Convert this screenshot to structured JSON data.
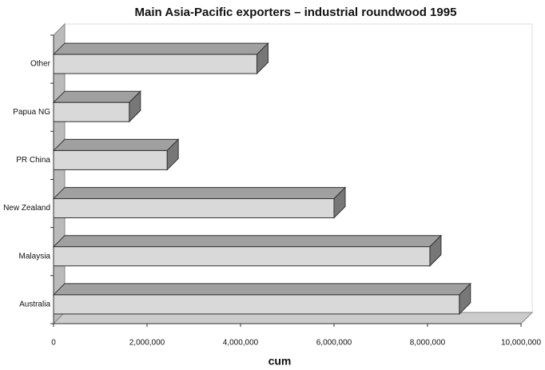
{
  "chart_data": {
    "type": "bar3d_horizontal",
    "title": "Main Asia-Pacific exporters – industrial roundwood 1995",
    "xlabel": "cum",
    "categories": [
      "Other",
      "Papua NG",
      "PR China",
      "New Zealand",
      "Malaysia",
      "Australia"
    ],
    "values": [
      4350000,
      1620000,
      2430000,
      6000000,
      8050000,
      8680000
    ],
    "color": "#d9d9d9",
    "xlim": [
      0,
      10000000
    ],
    "xticks": [
      0,
      {
        "value": 2000000,
        "label": "2,000,000"
      },
      {
        "value": 4000000,
        "label": "4,000,000"
      },
      {
        "value": 6000000,
        "label": "6,000,000"
      },
      {
        "value": 8000000,
        "label": "8,000,000"
      },
      {
        "value": 10000000,
        "label": "10,000,000"
      }
    ]
  }
}
